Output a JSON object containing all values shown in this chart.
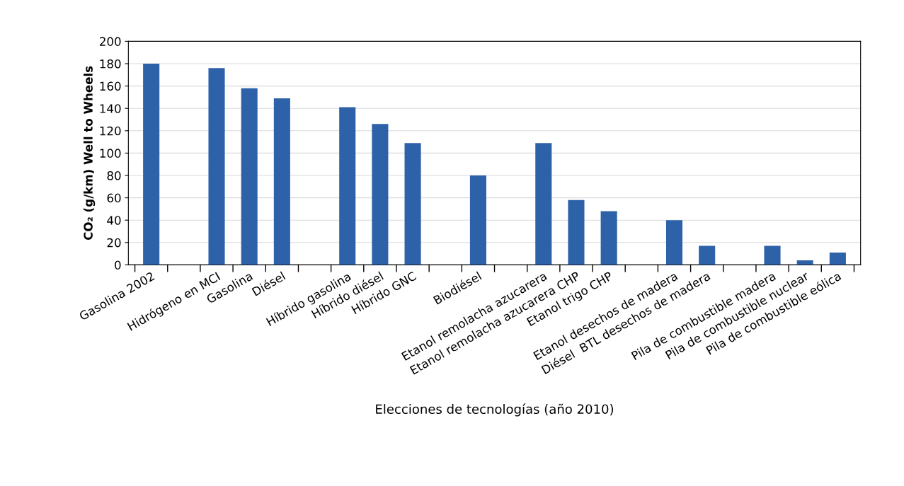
{
  "chart_data": {
    "type": "bar",
    "categories": [
      "Gasolina 2002",
      null,
      "Hidrógeno en MCI",
      "Gasolina",
      "Diésel",
      null,
      "Híbrido gasolina",
      "Híbrido diésel",
      "Híbrido GNC",
      null,
      "Biodiésel",
      null,
      "Etanol remolacha azucarera",
      "Etanol remolacha azucarera CHP",
      "Etanol trigo CHP",
      null,
      "Etanol desechos de madera",
      "Diésel  BTL desechos de madera",
      null,
      "Pila de combustible madera",
      "Pila de combustible nuclear",
      "Pila de combustible eólica"
    ],
    "values": [
      180,
      null,
      176,
      158,
      149,
      null,
      141,
      126,
      109,
      null,
      80,
      null,
      109,
      58,
      48,
      null,
      40,
      17,
      null,
      17,
      4,
      11
    ],
    "color": "#2e62a8",
    "xlabel": "Elecciones de tecnologías (año 2010)",
    "ylabel": "CO₂ (g/km) Well to Wheels",
    "ylim": [
      0,
      200
    ],
    "yticks": [
      0,
      20,
      40,
      60,
      80,
      100,
      120,
      140,
      160,
      180,
      200
    ],
    "grid": "y"
  }
}
